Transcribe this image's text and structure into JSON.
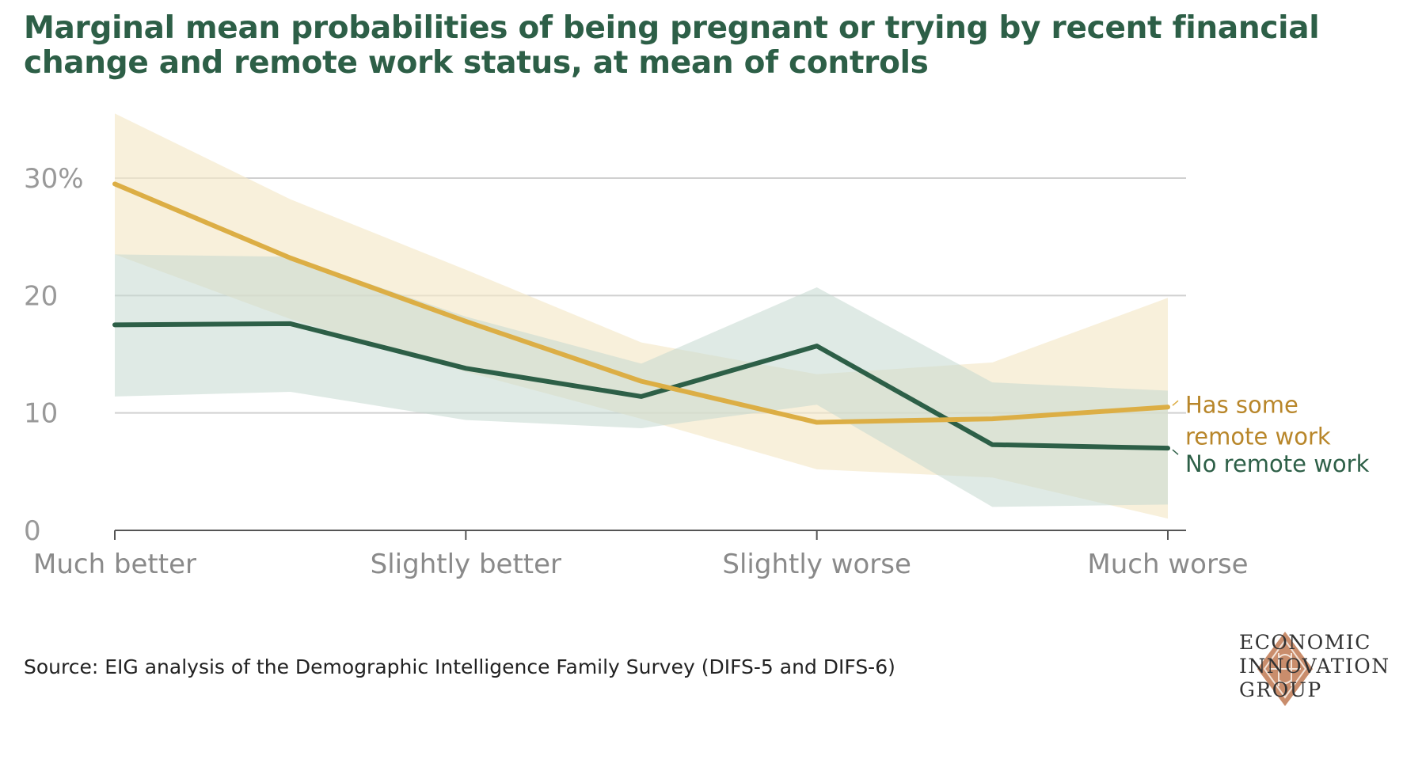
{
  "title_lines": [
    "Marginal mean probabilities of being pregnant or trying by recent financial",
    "change and remote work status, at mean of controls"
  ],
  "source": "Source: EIG analysis of the Demographic Intelligence Family Survey (DIFS-5 and DIFS-6)",
  "logo": {
    "lines": [
      "ECONOMIC",
      "INNOVATION",
      "GROUP"
    ],
    "icon": "eig-diamond-logo-icon"
  },
  "chart_data": {
    "type": "line",
    "title": "Marginal mean probabilities of being pregnant or trying by recent financial change and remote work status, at mean of controls",
    "x": [
      0,
      0.5,
      1,
      1.5,
      2,
      2.5,
      3
    ],
    "x_ticks": [
      {
        "x": 0,
        "label": "Much better"
      },
      {
        "x": 1,
        "label": "Slightly better"
      },
      {
        "x": 2,
        "label": "Slightly worse"
      },
      {
        "x": 3,
        "label": "Much worse"
      }
    ],
    "y_ticks": [
      {
        "value": 0,
        "label": "0"
      },
      {
        "value": 10,
        "label": "10"
      },
      {
        "value": 20,
        "label": "20"
      },
      {
        "value": 30,
        "label": "30%"
      }
    ],
    "ylim": [
      0,
      35
    ],
    "grid": true,
    "series": [
      {
        "name": "Has some remote work",
        "label_lines": [
          "Has some",
          "remote work"
        ],
        "color": "#dcae45",
        "band_color": "#f4e8c8",
        "values": [
          29.5,
          23.2,
          17.8,
          12.7,
          9.2,
          9.5,
          10.5
        ],
        "lower": [
          23.5,
          18.0,
          13.5,
          9.5,
          5.2,
          4.5,
          1.0
        ],
        "upper": [
          35.5,
          28.2,
          22.2,
          16.0,
          13.3,
          14.3,
          19.8
        ]
      },
      {
        "name": "No remote work",
        "label_lines": [
          "No remote work"
        ],
        "color": "#2d5f47",
        "band_color": "#c5d8d0",
        "values": [
          17.5,
          17.6,
          13.8,
          11.4,
          15.7,
          7.3,
          7.0
        ],
        "lower": [
          11.4,
          11.8,
          9.4,
          8.7,
          10.7,
          2.0,
          2.2
        ],
        "upper": [
          23.5,
          23.3,
          18.2,
          14.2,
          20.7,
          12.6,
          11.9
        ]
      }
    ]
  }
}
